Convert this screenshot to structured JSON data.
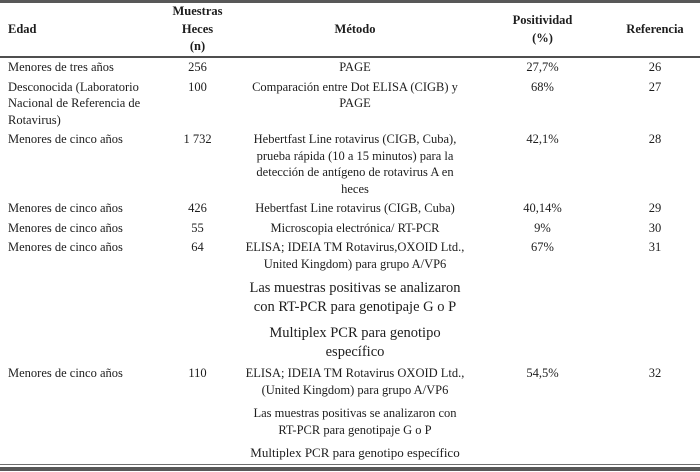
{
  "colors": {
    "rule": "#585858",
    "text": "#1d1d1d",
    "page_background": "#ffffff"
  },
  "table": {
    "headers": {
      "edad": {
        "lines": [
          "Edad"
        ]
      },
      "muestras": {
        "lines": [
          "Muestras",
          "Heces",
          "(n)"
        ]
      },
      "metodo": {
        "lines": [
          "Método"
        ]
      },
      "positividad": {
        "lines": [
          "Positividad",
          "(%)"
        ]
      },
      "referencia": {
        "lines": [
          "Referencia"
        ]
      }
    },
    "rows": [
      {
        "type": "data",
        "edad_lines": [
          "Menores de tres años"
        ],
        "muestras": "256",
        "metodo_lines": [
          "PAGE"
        ],
        "positividad": "27,7%",
        "referencia": "26"
      },
      {
        "type": "data",
        "edad_lines": [
          "Desconocida (Laboratorio",
          "Nacional de Referencia de",
          "Rotavirus)"
        ],
        "muestras": "100",
        "metodo_lines": [
          "Comparación entre Dot ELISA (CIGB) y",
          "PAGE"
        ],
        "positividad": "68%",
        "referencia": "27"
      },
      {
        "type": "data",
        "edad_lines": [
          "Menores de cinco años"
        ],
        "muestras": "1 732",
        "metodo_lines": [
          "Hebertfast Line rotavirus (CIGB, Cuba),",
          "prueba rápida (10 a 15 minutos) para la",
          "detección de antígeno de rotavirus A en",
          "heces"
        ],
        "positividad": "42,1%",
        "referencia": "28"
      },
      {
        "type": "data",
        "edad_lines": [
          "Menores de cinco años"
        ],
        "muestras": "426",
        "metodo_lines": [
          "Hebertfast Line rotavirus (CIGB, Cuba)"
        ],
        "positividad": "40,14%",
        "referencia": "29"
      },
      {
        "type": "data",
        "edad_lines": [
          "Menores de cinco años"
        ],
        "muestras": "55",
        "metodo_lines": [
          "Microscopia electrónica/ RT-PCR"
        ],
        "positividad": "9%",
        "referencia": "30"
      },
      {
        "type": "data",
        "edad_lines": [
          "Menores de cinco años"
        ],
        "muestras": "64",
        "metodo_lines": [
          "ELISA; IDEIA TM Rotavirus,OXOID Ltd.,",
          "United Kingdom) para grupo A/VP6"
        ],
        "positividad": "67%",
        "referencia": "31"
      },
      {
        "type": "note-large",
        "metodo_lines": [
          "Las muestras positivas se analizaron",
          "con RT-PCR para genotipaje G o P"
        ]
      },
      {
        "type": "note-large",
        "metodo_lines": [
          "Multiplex PCR para genotipo",
          "específico"
        ]
      },
      {
        "type": "data",
        "edad_lines": [
          "Menores de cinco años"
        ],
        "muestras": "110",
        "metodo_lines": [
          "ELISA; IDEIA TM Rotavirus OXOID Ltd.,",
          "(United Kingdom) para grupo A/VP6"
        ],
        "positividad": "54,5%",
        "referencia": "32"
      },
      {
        "type": "note",
        "metodo_lines": [
          "Las muestras positivas se analizaron con",
          "RT-PCR para genotipaje G o P"
        ]
      },
      {
        "type": "note",
        "metodo_lines": [
          "Multiplex PCR para genotipo específico"
        ]
      }
    ]
  }
}
